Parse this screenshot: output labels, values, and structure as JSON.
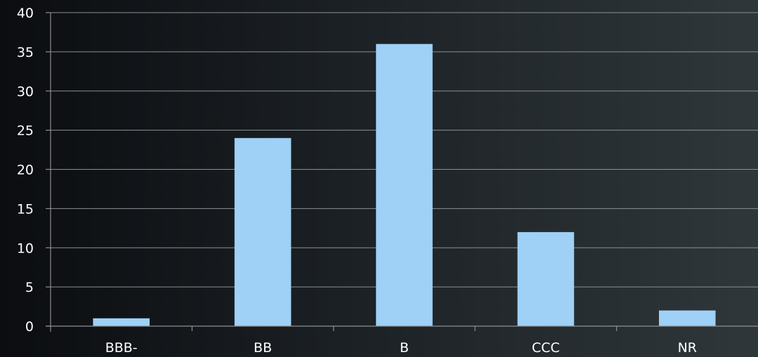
{
  "chart_data": {
    "type": "bar",
    "title": "",
    "xlabel": "",
    "ylabel": "",
    "categories": [
      "BBB-",
      "BB",
      "B",
      "CCC",
      "NR"
    ],
    "values": [
      1,
      24,
      36,
      12,
      2
    ],
    "ylim": [
      0,
      40
    ],
    "yticks": [
      0,
      5,
      10,
      15,
      20,
      25,
      30,
      35,
      40
    ],
    "grid": true,
    "legend": "none",
    "colors": {
      "bar": "#9fd0f5",
      "background_start": "#0b0d10",
      "background_end": "#2f373b",
      "grid": "#8a9094",
      "text": "#ffffff"
    }
  }
}
